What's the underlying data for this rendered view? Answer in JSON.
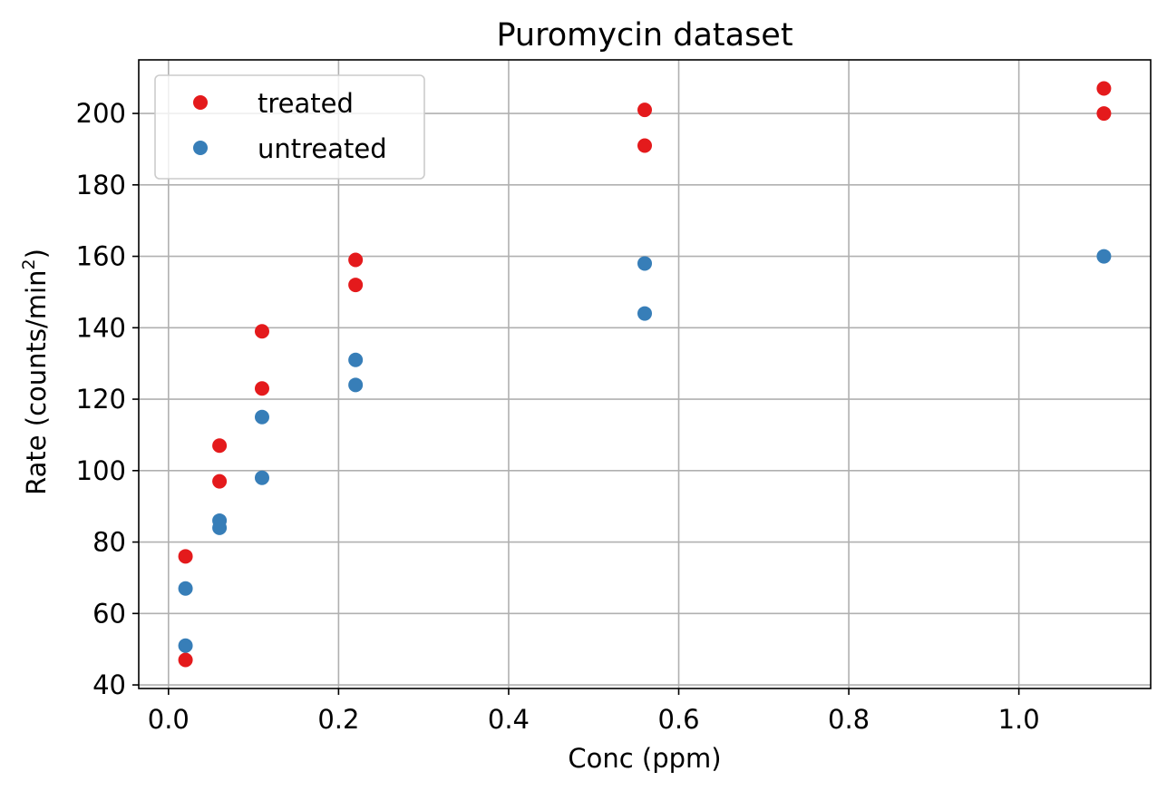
{
  "chart_data": {
    "type": "scatter",
    "title": "Puromycin dataset",
    "xlabel": "Conc (ppm)",
    "ylabel_main": "Rate (counts/min",
    "ylabel_sup": "2",
    "ylabel_close": ")",
    "xlim": [
      -0.035,
      1.155
    ],
    "ylim": [
      39,
      215
    ],
    "xticks": [
      0.0,
      0.2,
      0.4,
      0.6,
      0.8,
      1.0
    ],
    "xtick_labels": [
      "0.0",
      "0.2",
      "0.4",
      "0.6",
      "0.8",
      "1.0"
    ],
    "yticks": [
      40,
      60,
      80,
      100,
      120,
      140,
      160,
      180,
      200
    ],
    "ytick_labels": [
      "40",
      "60",
      "80",
      "100",
      "120",
      "140",
      "160",
      "180",
      "200"
    ],
    "grid": true,
    "legend_position": "top-left",
    "series": [
      {
        "name": "treated",
        "color": "#e41a1c",
        "x": [
          0.02,
          0.02,
          0.06,
          0.06,
          0.11,
          0.11,
          0.22,
          0.22,
          0.56,
          0.56,
          1.1,
          1.1
        ],
        "y": [
          76,
          47,
          97,
          107,
          123,
          139,
          159,
          152,
          191,
          201,
          207,
          200
        ]
      },
      {
        "name": "untreated",
        "color": "#377eb8",
        "x": [
          0.02,
          0.02,
          0.06,
          0.06,
          0.11,
          0.11,
          0.22,
          0.22,
          0.56,
          0.56,
          1.1
        ],
        "y": [
          67,
          51,
          84,
          86,
          98,
          115,
          131,
          124,
          144,
          158,
          160
        ]
      }
    ]
  }
}
